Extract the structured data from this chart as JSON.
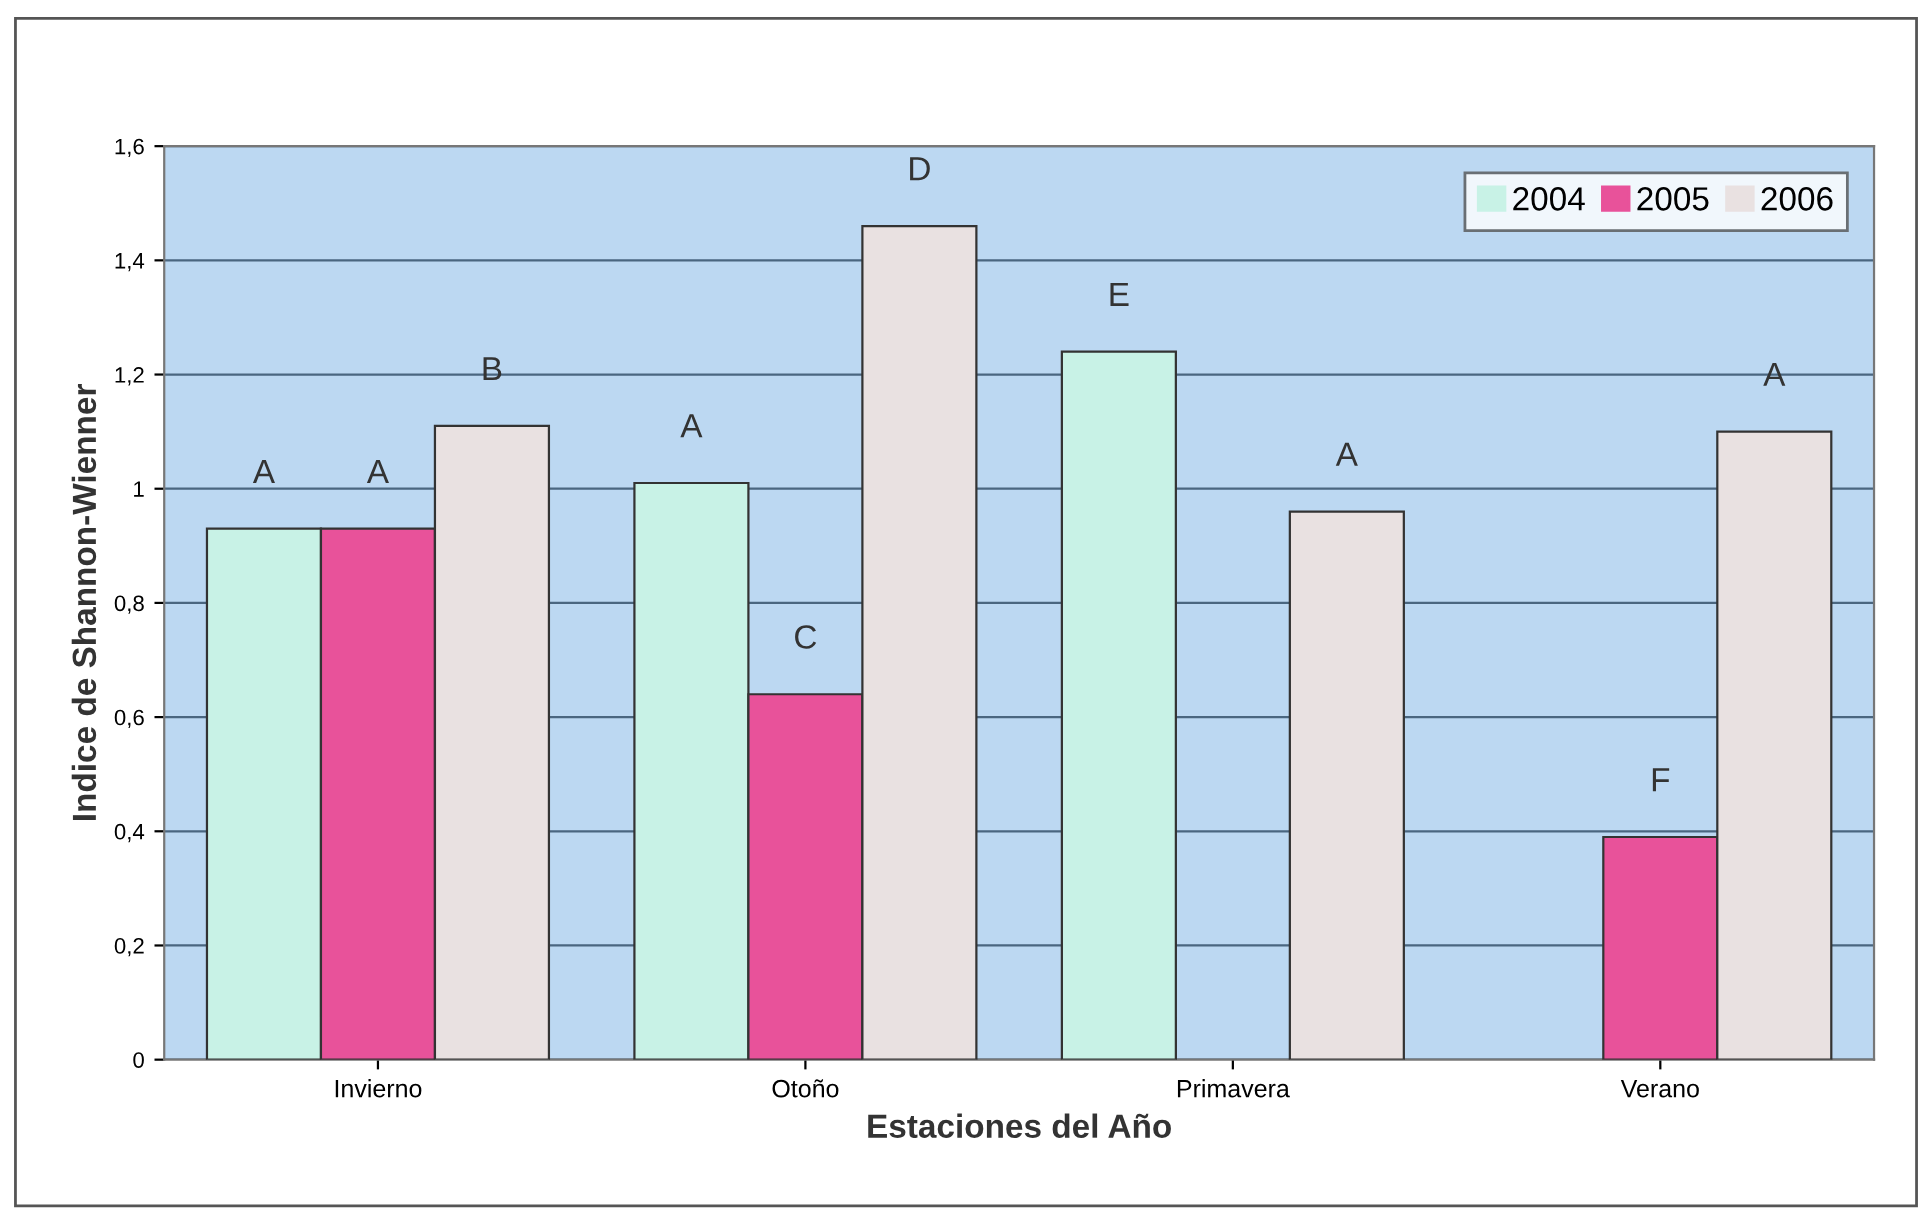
{
  "chart_data": {
    "type": "bar",
    "xlabel": "Estaciones del Año",
    "ylabel": "Indice de Shannon-Wienner",
    "categories": [
      "Invierno",
      "Otoño",
      "Primavera",
      "Verano"
    ],
    "series": [
      {
        "name": "2004",
        "color": "#c8f2e6",
        "values": [
          0.93,
          1.01,
          1.24,
          null
        ]
      },
      {
        "name": "2005",
        "color": "#e8529a",
        "values": [
          0.93,
          0.64,
          null,
          0.39
        ]
      },
      {
        "name": "2006",
        "color": "#e9e1e1",
        "values": [
          1.11,
          1.46,
          0.96,
          1.1
        ]
      }
    ],
    "ylim": [
      0,
      1.6
    ],
    "yticks": [
      {
        "value": 0,
        "label": "0"
      },
      {
        "value": 0.2,
        "label": "0,2"
      },
      {
        "value": 0.4,
        "label": "0,4"
      },
      {
        "value": 0.6,
        "label": "0,6"
      },
      {
        "value": 0.8,
        "label": "0,8"
      },
      {
        "value": 1,
        "label": "1"
      },
      {
        "value": 1.2,
        "label": "1,2"
      },
      {
        "value": 1.4,
        "label": "1,4"
      },
      {
        "value": 1.6,
        "label": "1,6"
      }
    ],
    "grid": "y",
    "legend": "top right",
    "annotations": [
      "A",
      "A",
      "B",
      "A",
      "C",
      "D",
      "E",
      "A",
      "F",
      "A"
    ]
  }
}
